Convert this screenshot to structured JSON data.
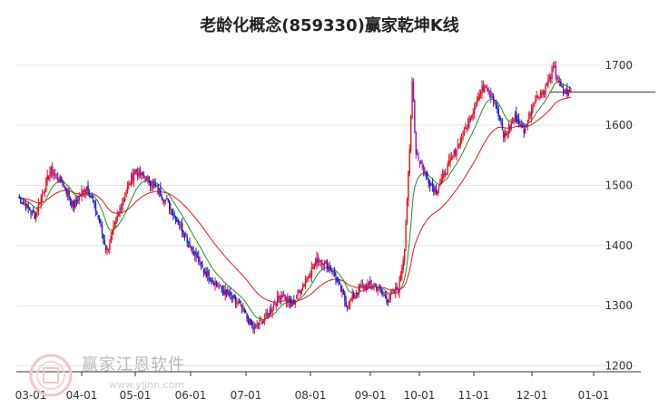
{
  "chart_data": {
    "type": "candlestick",
    "title": "老龄化概念(859330)赢家乾坤K线",
    "x_ticks": [
      "03-01",
      "04-01",
      "05-01",
      "06-01",
      "07-01",
      "08-01",
      "09-01",
      "10-01",
      "11-01",
      "12-01",
      "01-01"
    ],
    "y_ticks": [
      1200,
      1300,
      1400,
      1500,
      1600,
      1700
    ],
    "ylim": [
      1190,
      1745
    ],
    "reference_line": 1655,
    "grid": true,
    "colors": {
      "up": "#e8131b",
      "down": "#1b1bd6",
      "accumulate": "#8e1bb0",
      "fast_line": "#1f8f1f",
      "slow_line": "#e8131b",
      "axis": "#333333",
      "grid": "#e5e5e5",
      "ref_line": "#333333"
    },
    "anchors": [
      {
        "x": 0,
        "y": 1480
      },
      {
        "x": 18,
        "y": 1450
      },
      {
        "x": 35,
        "y": 1525
      },
      {
        "x": 48,
        "y": 1505
      },
      {
        "x": 60,
        "y": 1465
      },
      {
        "x": 74,
        "y": 1500
      },
      {
        "x": 86,
        "y": 1450
      },
      {
        "x": 96,
        "y": 1390
      },
      {
        "x": 112,
        "y": 1470
      },
      {
        "x": 126,
        "y": 1525
      },
      {
        "x": 144,
        "y": 1505
      },
      {
        "x": 160,
        "y": 1475
      },
      {
        "x": 180,
        "y": 1420
      },
      {
        "x": 200,
        "y": 1360
      },
      {
        "x": 218,
        "y": 1330
      },
      {
        "x": 240,
        "y": 1300
      },
      {
        "x": 255,
        "y": 1260
      },
      {
        "x": 270,
        "y": 1285
      },
      {
        "x": 285,
        "y": 1320
      },
      {
        "x": 296,
        "y": 1300
      },
      {
        "x": 312,
        "y": 1345
      },
      {
        "x": 325,
        "y": 1380
      },
      {
        "x": 340,
        "y": 1360
      },
      {
        "x": 356,
        "y": 1300
      },
      {
        "x": 370,
        "y": 1330
      },
      {
        "x": 386,
        "y": 1335
      },
      {
        "x": 400,
        "y": 1310
      },
      {
        "x": 412,
        "y": 1330
      },
      {
        "x": 418,
        "y": 1390
      },
      {
        "x": 424,
        "y": 1560
      },
      {
        "x": 427,
        "y": 1690
      },
      {
        "x": 430,
        "y": 1560
      },
      {
        "x": 440,
        "y": 1520
      },
      {
        "x": 452,
        "y": 1490
      },
      {
        "x": 462,
        "y": 1520
      },
      {
        "x": 474,
        "y": 1560
      },
      {
        "x": 486,
        "y": 1600
      },
      {
        "x": 496,
        "y": 1640
      },
      {
        "x": 506,
        "y": 1670
      },
      {
        "x": 516,
        "y": 1640
      },
      {
        "x": 526,
        "y": 1580
      },
      {
        "x": 538,
        "y": 1615
      },
      {
        "x": 548,
        "y": 1590
      },
      {
        "x": 558,
        "y": 1640
      },
      {
        "x": 570,
        "y": 1660
      },
      {
        "x": 580,
        "y": 1695
      },
      {
        "x": 588,
        "y": 1660
      },
      {
        "x": 596,
        "y": 1655
      }
    ]
  }
}
